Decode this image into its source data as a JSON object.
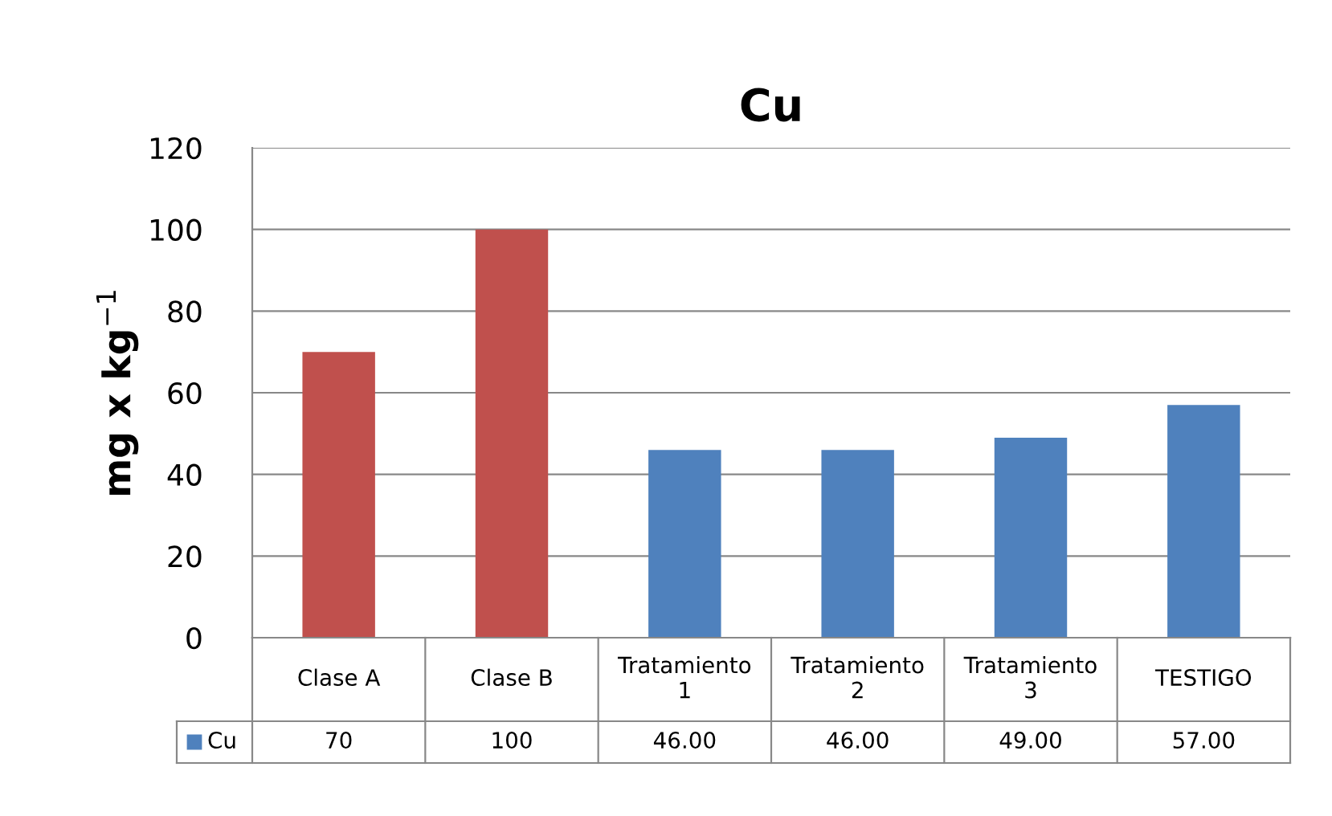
{
  "chart_data": {
    "type": "bar",
    "title": "Cu",
    "ylabel": "mg x kg$^{−1}$",
    "categories": [
      "Clase A",
      "Clase B",
      "Tratamiento 1",
      "Tratamiento 2",
      "Tratamiento 3",
      "TESTIGO"
    ],
    "series": [
      {
        "name": "Cu",
        "color": "#4f81bd",
        "colors": [
          "#c0504d",
          "#c0504d",
          "#4f81bd",
          "#4f81bd",
          "#4f81bd",
          "#4f81bd"
        ],
        "values": [
          70,
          100,
          46,
          46,
          49,
          57
        ],
        "value_labels": [
          "70",
          "100",
          "46.00",
          "46.00",
          "49.00",
          "57.00"
        ]
      }
    ],
    "ylim": [
      0,
      120
    ],
    "yticks": [
      0,
      20,
      40,
      60,
      80,
      100,
      120
    ],
    "grid": "y",
    "legend": "bottom"
  }
}
